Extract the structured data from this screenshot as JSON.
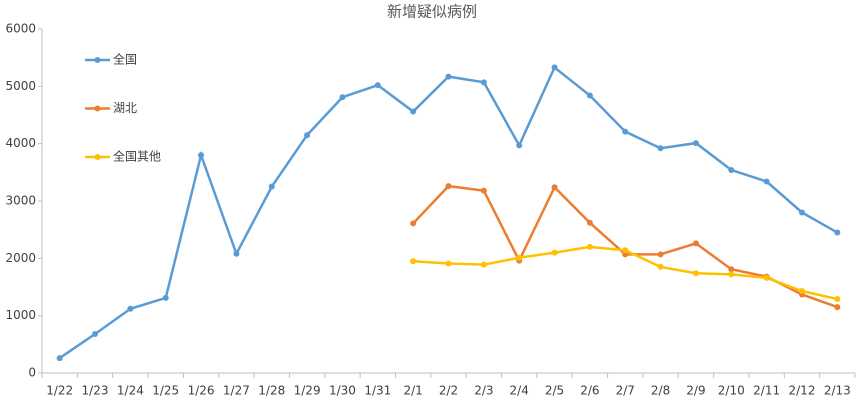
{
  "chart_data": {
    "type": "line",
    "title": "新增疑似病例",
    "categories": [
      "1/22",
      "1/23",
      "1/24",
      "1/25",
      "1/26",
      "1/27",
      "1/28",
      "1/29",
      "1/30",
      "1/31",
      "2/1",
      "2/2",
      "2/3",
      "2/4",
      "2/5",
      "2/6",
      "2/7",
      "2/8",
      "2/9",
      "2/10",
      "2/11",
      "2/12",
      "2/13"
    ],
    "series": [
      {
        "name": "全国",
        "color": "#5b9bd5",
        "values": [
          260,
          680,
          1120,
          1310,
          3800,
          2080,
          3250,
          4150,
          4810,
          5020,
          4560,
          5170,
          5070,
          3970,
          5330,
          4840,
          4210,
          3920,
          4010,
          3540,
          3340,
          2800,
          2450
        ]
      },
      {
        "name": "湖北",
        "color": "#ed7d31",
        "values": [
          null,
          null,
          null,
          null,
          null,
          null,
          null,
          null,
          null,
          null,
          2610,
          3260,
          3180,
          1960,
          3240,
          2620,
          2070,
          2070,
          2260,
          1810,
          1680,
          1370,
          1150
        ]
      },
      {
        "name": "全国其他",
        "color": "#ffc000",
        "values": [
          null,
          null,
          null,
          null,
          null,
          null,
          null,
          null,
          null,
          null,
          1950,
          1910,
          1890,
          2010,
          2100,
          2200,
          2140,
          1850,
          1740,
          1720,
          1660,
          1430,
          1290
        ]
      }
    ],
    "ylim": [
      0,
      6000
    ],
    "yticks": [
      0,
      1000,
      2000,
      3000,
      4000,
      5000,
      6000
    ],
    "grid": false,
    "legend": "top-left"
  }
}
